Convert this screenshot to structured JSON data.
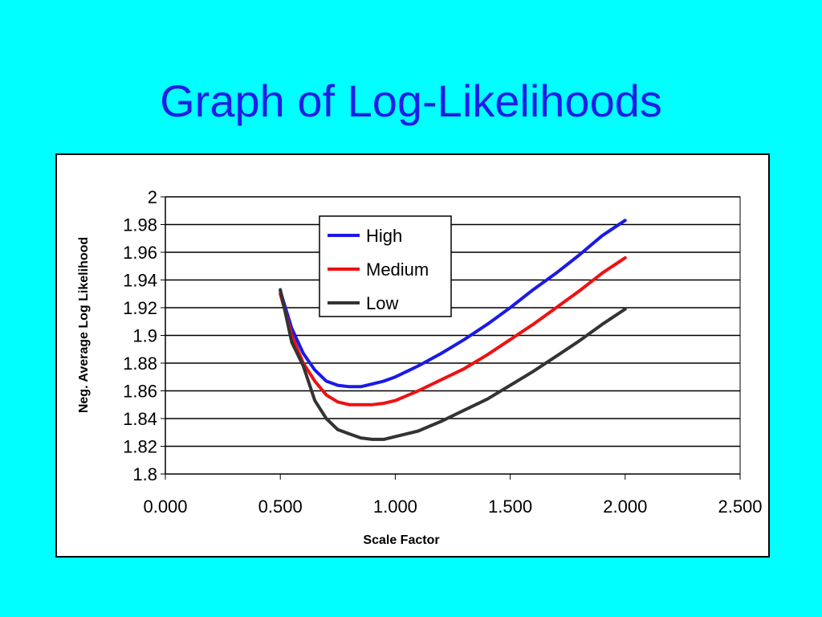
{
  "slide": {
    "title": "Graph of Log-Likelihoods"
  },
  "colors": {
    "background": "#00ffff",
    "title": "#1e1ee6",
    "high": "#1a1ae6",
    "medium": "#ee1111",
    "low": "#333333"
  },
  "chart_data": {
    "type": "line",
    "xlabel": "Scale Factor",
    "ylabel": "Neg. Average Log Likelihood",
    "xlim": [
      0,
      2.5
    ],
    "ylim": [
      1.8,
      2.0
    ],
    "x_ticks": [
      "0.000",
      "0.500",
      "1.000",
      "1.500",
      "2.000",
      "2.500"
    ],
    "y_ticks": [
      "1.8",
      "1.82",
      "1.84",
      "1.86",
      "1.88",
      "1.9",
      "1.92",
      "1.94",
      "1.96",
      "1.98",
      "2"
    ],
    "grid": "horizontal",
    "legend_position": "top-center",
    "x": [
      0.5,
      0.55,
      0.6,
      0.65,
      0.7,
      0.75,
      0.8,
      0.85,
      0.9,
      0.95,
      1.0,
      1.1,
      1.2,
      1.3,
      1.4,
      1.5,
      1.6,
      1.7,
      1.8,
      1.9,
      2.0
    ],
    "series": [
      {
        "name": "High",
        "color": "#1a1ae6",
        "values": [
          1.932,
          1.905,
          1.887,
          1.875,
          1.867,
          1.864,
          1.863,
          1.863,
          1.865,
          1.867,
          1.87,
          1.878,
          1.887,
          1.897,
          1.908,
          1.92,
          1.933,
          1.945,
          1.958,
          1.972,
          1.983
        ]
      },
      {
        "name": "Medium",
        "color": "#ee1111",
        "values": [
          1.93,
          1.9,
          1.88,
          1.867,
          1.857,
          1.852,
          1.85,
          1.85,
          1.85,
          1.851,
          1.853,
          1.86,
          1.868,
          1.876,
          1.886,
          1.897,
          1.908,
          1.92,
          1.932,
          1.945,
          1.956
        ]
      },
      {
        "name": "Low",
        "color": "#333333",
        "values": [
          1.933,
          1.895,
          1.878,
          1.853,
          1.84,
          1.832,
          1.829,
          1.826,
          1.825,
          1.825,
          1.827,
          1.831,
          1.838,
          1.846,
          1.854,
          1.864,
          1.874,
          1.885,
          1.896,
          1.908,
          1.919
        ]
      }
    ]
  }
}
